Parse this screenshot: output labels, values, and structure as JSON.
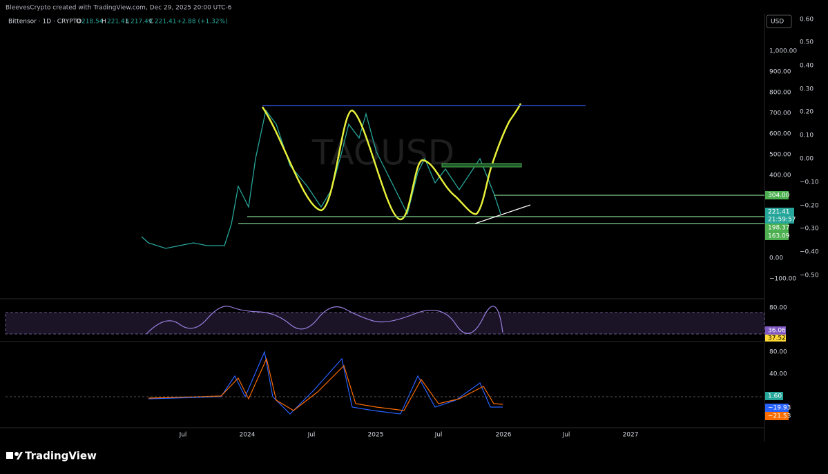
{
  "header": {
    "credit": "BleevesCrypto created with TradingView.com, Dec 29, 2025 20:00 UTC-6",
    "symbol": "Bittensor · 1D · CRYPTO",
    "open_label": "O",
    "open": "218.54",
    "high_label": "H",
    "high": "221.43",
    "low_label": "L",
    "low": "217.49",
    "close_label": "C",
    "close": "221.41",
    "change": "+2.88 (+1.32%)"
  },
  "watermark": "TAOUSD",
  "currency": "USD",
  "price_axis": [
    "1,000.00",
    "900.00",
    "800.00",
    "700.00",
    "600.00",
    "500.00",
    "400.00",
    "0.00",
    "−100.00"
  ],
  "right_axis": [
    "0.60",
    "0.50",
    "0.40",
    "0.30",
    "0.20",
    "0.10",
    "0.00",
    "−0.10",
    "−0.20",
    "−0.30",
    "−0.40",
    "−0.50"
  ],
  "price_tags": [
    "304.00",
    "221.41",
    "21:59:57",
    "198.37",
    "163.09"
  ],
  "rsi_axis": [
    "80.00"
  ],
  "rsi_tags": [
    "36.06",
    "37.52"
  ],
  "macd_axis": [
    "80.00",
    "40.00"
  ],
  "macd_tags": [
    "1.60",
    "−19.93",
    "−21.53"
  ],
  "time_axis": [
    "Jul",
    "2024",
    "Jul",
    "2025",
    "Jul",
    "2026",
    "Jul",
    "2027"
  ],
  "footer": "TradingView"
}
